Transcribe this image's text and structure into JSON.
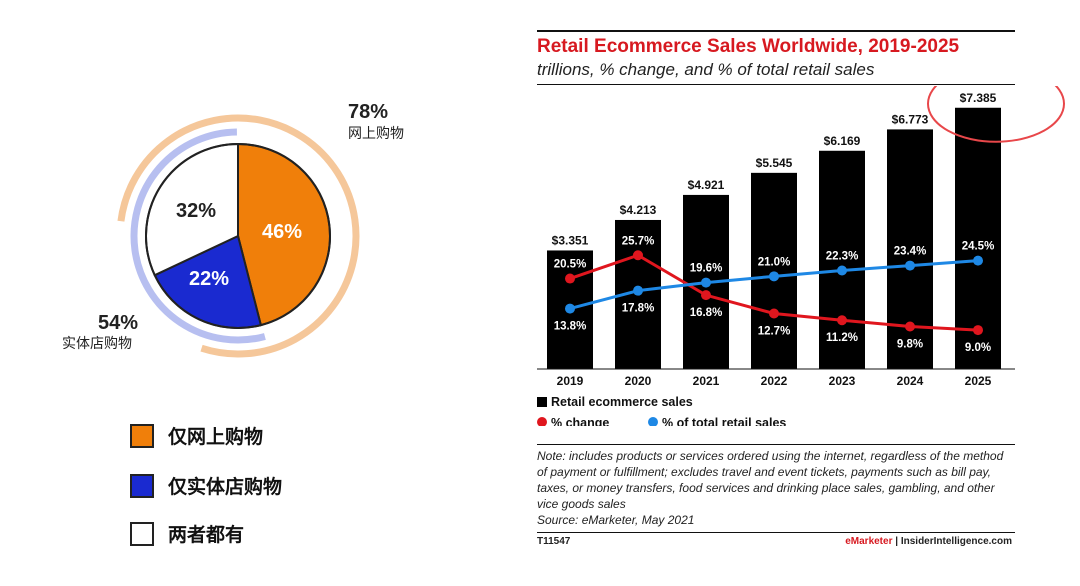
{
  "left": {
    "online_total": {
      "pct": "78%",
      "label": "网上购物"
    },
    "offline_total": {
      "pct": "54%",
      "label": "实体店购物"
    },
    "slices": [
      {
        "name": "online-only",
        "pct_text": "46%",
        "value": 46,
        "color": "#f07f0a"
      },
      {
        "name": "offline-only",
        "pct_text": "22%",
        "value": 22,
        "color": "#1a2ad0"
      },
      {
        "name": "both",
        "pct_text": "32%",
        "value": 32,
        "color": "#ffffff"
      }
    ],
    "legend": [
      {
        "label": "仅网上购物",
        "color": "#f07f0a"
      },
      {
        "label": "仅实体店购物",
        "color": "#1a2ad0"
      },
      {
        "label": "两者都有",
        "color": "#ffffff"
      }
    ]
  },
  "right": {
    "note": "Note: includes products or services ordered using the internet, regardless of the method of payment or fulfillment; excludes travel and event tickets, payments such as bill pay, taxes, or money transfers, food services and drinking place sales, gambling, and other vice goods sales",
    "source": "Source: eMarketer, May 2021",
    "chart_id": "T11547",
    "brand_left": "eMarketer",
    "brand_sep": " | ",
    "brand_right": "InsiderIntelligence.com",
    "accent": "#d71920"
  },
  "chart_data": {
    "type": "bar",
    "title": "Retail Ecommerce Sales Worldwide, 2019-2025",
    "subtitle": "trillions, % change, and % of total retail sales",
    "categories": [
      "2019",
      "2020",
      "2021",
      "2022",
      "2023",
      "2024",
      "2025"
    ],
    "ylim": [
      0,
      8
    ],
    "series": [
      {
        "name": "Retail ecommerce sales",
        "kind": "bar",
        "color": "#000000",
        "values": [
          3.351,
          4.213,
          4.921,
          5.545,
          6.169,
          6.773,
          7.385
        ],
        "labels": [
          "$3.351",
          "$4.213",
          "$4.921",
          "$5.545",
          "$6.169",
          "$6.773",
          "$7.385"
        ]
      },
      {
        "name": "% change",
        "kind": "line",
        "color": "#e0161e",
        "values": [
          20.5,
          25.7,
          16.8,
          12.7,
          11.2,
          9.8,
          9.0
        ],
        "labels": [
          "20.5%",
          "25.7%",
          "16.8%",
          "12.7%",
          "11.2%",
          "9.8%",
          "9.0%"
        ]
      },
      {
        "name": "% of total retail sales",
        "kind": "line",
        "color": "#1e88e5",
        "values": [
          13.8,
          17.8,
          19.6,
          21.0,
          22.3,
          23.4,
          24.5
        ],
        "labels": [
          "13.8%",
          "17.8%",
          "19.6%",
          "21.0%",
          "22.3%",
          "23.4%",
          "24.5%"
        ]
      }
    ],
    "line_ylim": [
      5,
      30
    ],
    "highlight_category": "2025",
    "highlight_color": "#e8474a"
  }
}
